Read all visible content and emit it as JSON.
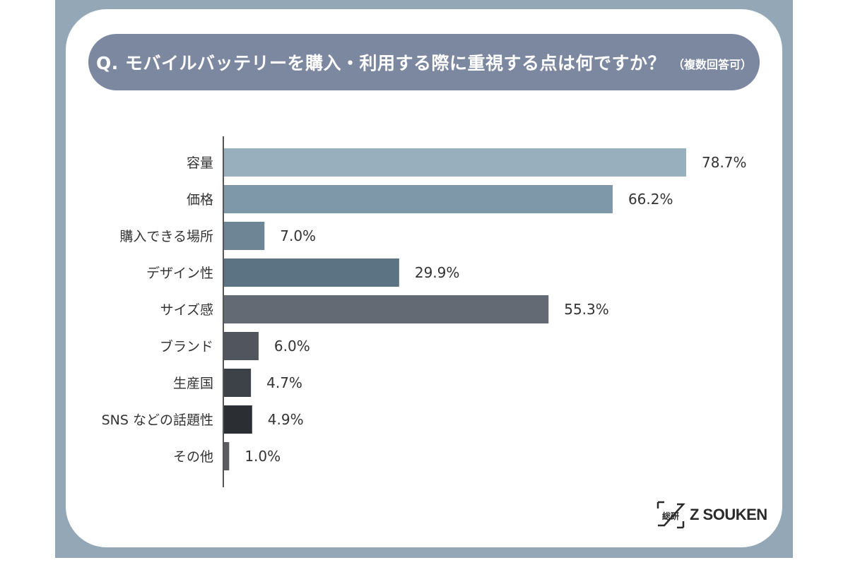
{
  "question": {
    "text": "Q. モバイルバッテリーを購入・利用する際に重視する点は何ですか？",
    "note": "（複数回答可）"
  },
  "brand": {
    "mark": "総研",
    "name": "Z SOUKEN"
  },
  "chart_data": {
    "type": "bar",
    "orientation": "horizontal",
    "categories": [
      "容量",
      "価格",
      "購入できる場所",
      "デザイン性",
      "サイズ感",
      "ブランド",
      "生産国",
      "SNS などの話題性",
      "その他"
    ],
    "values": [
      78.7,
      66.2,
      7.0,
      29.9,
      55.3,
      6.0,
      4.7,
      4.9,
      1.0
    ],
    "value_labels": [
      "78.7%",
      "66.2%",
      "7.0%",
      "29.9%",
      "55.3%",
      "6.0%",
      "4.7%",
      "4.9%",
      "1.0%"
    ],
    "colors": [
      "#98afbe",
      "#7f98a9",
      "#6e8596",
      "#5c7384",
      "#646a73",
      "#50555e",
      "#3d4148",
      "#2b2e33",
      "#5a5c60"
    ],
    "axis_color": "#555555",
    "xlim": [
      0,
      78.7
    ],
    "grid": false,
    "title": "",
    "xlabel": "",
    "ylabel": ""
  }
}
